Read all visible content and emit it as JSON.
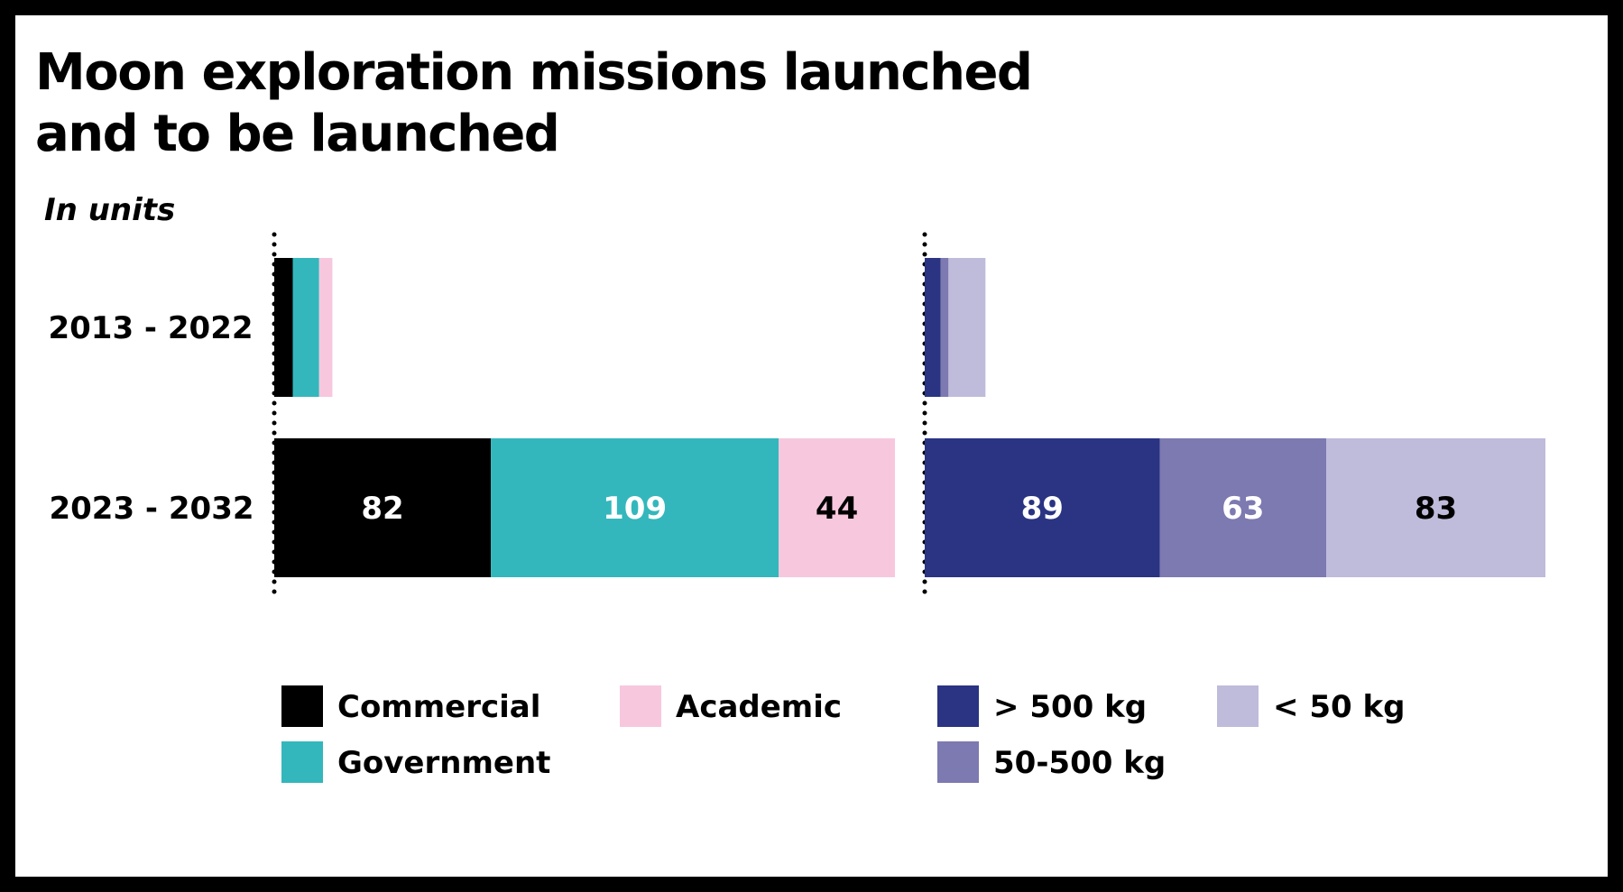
{
  "title": "Moon exploration missions launched\nand to be launched",
  "subtitle": "In units",
  "chart_data": [
    {
      "type": "bar",
      "orientation": "horizontal",
      "stacked": true,
      "categories": [
        "2013 - 2022",
        "2023 - 2032"
      ],
      "series": [
        {
          "name": "Commercial",
          "color": "#000000",
          "values": [
            7,
            82
          ],
          "show_labels": [
            false,
            true
          ],
          "label_color": "#ffffff"
        },
        {
          "name": "Government",
          "color": "#33b7bc",
          "values": [
            10,
            109
          ],
          "show_labels": [
            false,
            true
          ],
          "label_color": "#ffffff"
        },
        {
          "name": "Academic",
          "color": "#f7c7de",
          "values": [
            5,
            44
          ],
          "show_labels": [
            false,
            true
          ],
          "label_color": "#000000"
        }
      ],
      "xlim": [
        0,
        235
      ],
      "grid": false,
      "legend": "bottom"
    },
    {
      "type": "bar",
      "orientation": "horizontal",
      "stacked": true,
      "categories": [
        "2013 - 2022",
        "2023 - 2032"
      ],
      "series": [
        {
          "name": "> 500 kg",
          "color": "#2a3483",
          "values": [
            6,
            89
          ],
          "show_labels": [
            false,
            true
          ],
          "label_color": "#ffffff"
        },
        {
          "name": "50-500 kg",
          "color": "#7d79b1",
          "values": [
            3,
            63
          ],
          "show_labels": [
            false,
            true
          ],
          "label_color": "#ffffff"
        },
        {
          "name": "< 50 kg",
          "color": "#bfbbdb",
          "values": [
            14,
            83
          ],
          "show_labels": [
            false,
            true
          ],
          "label_color": "#000000"
        }
      ],
      "xlim": [
        0,
        235
      ],
      "grid": false,
      "legend": "bottom"
    }
  ]
}
